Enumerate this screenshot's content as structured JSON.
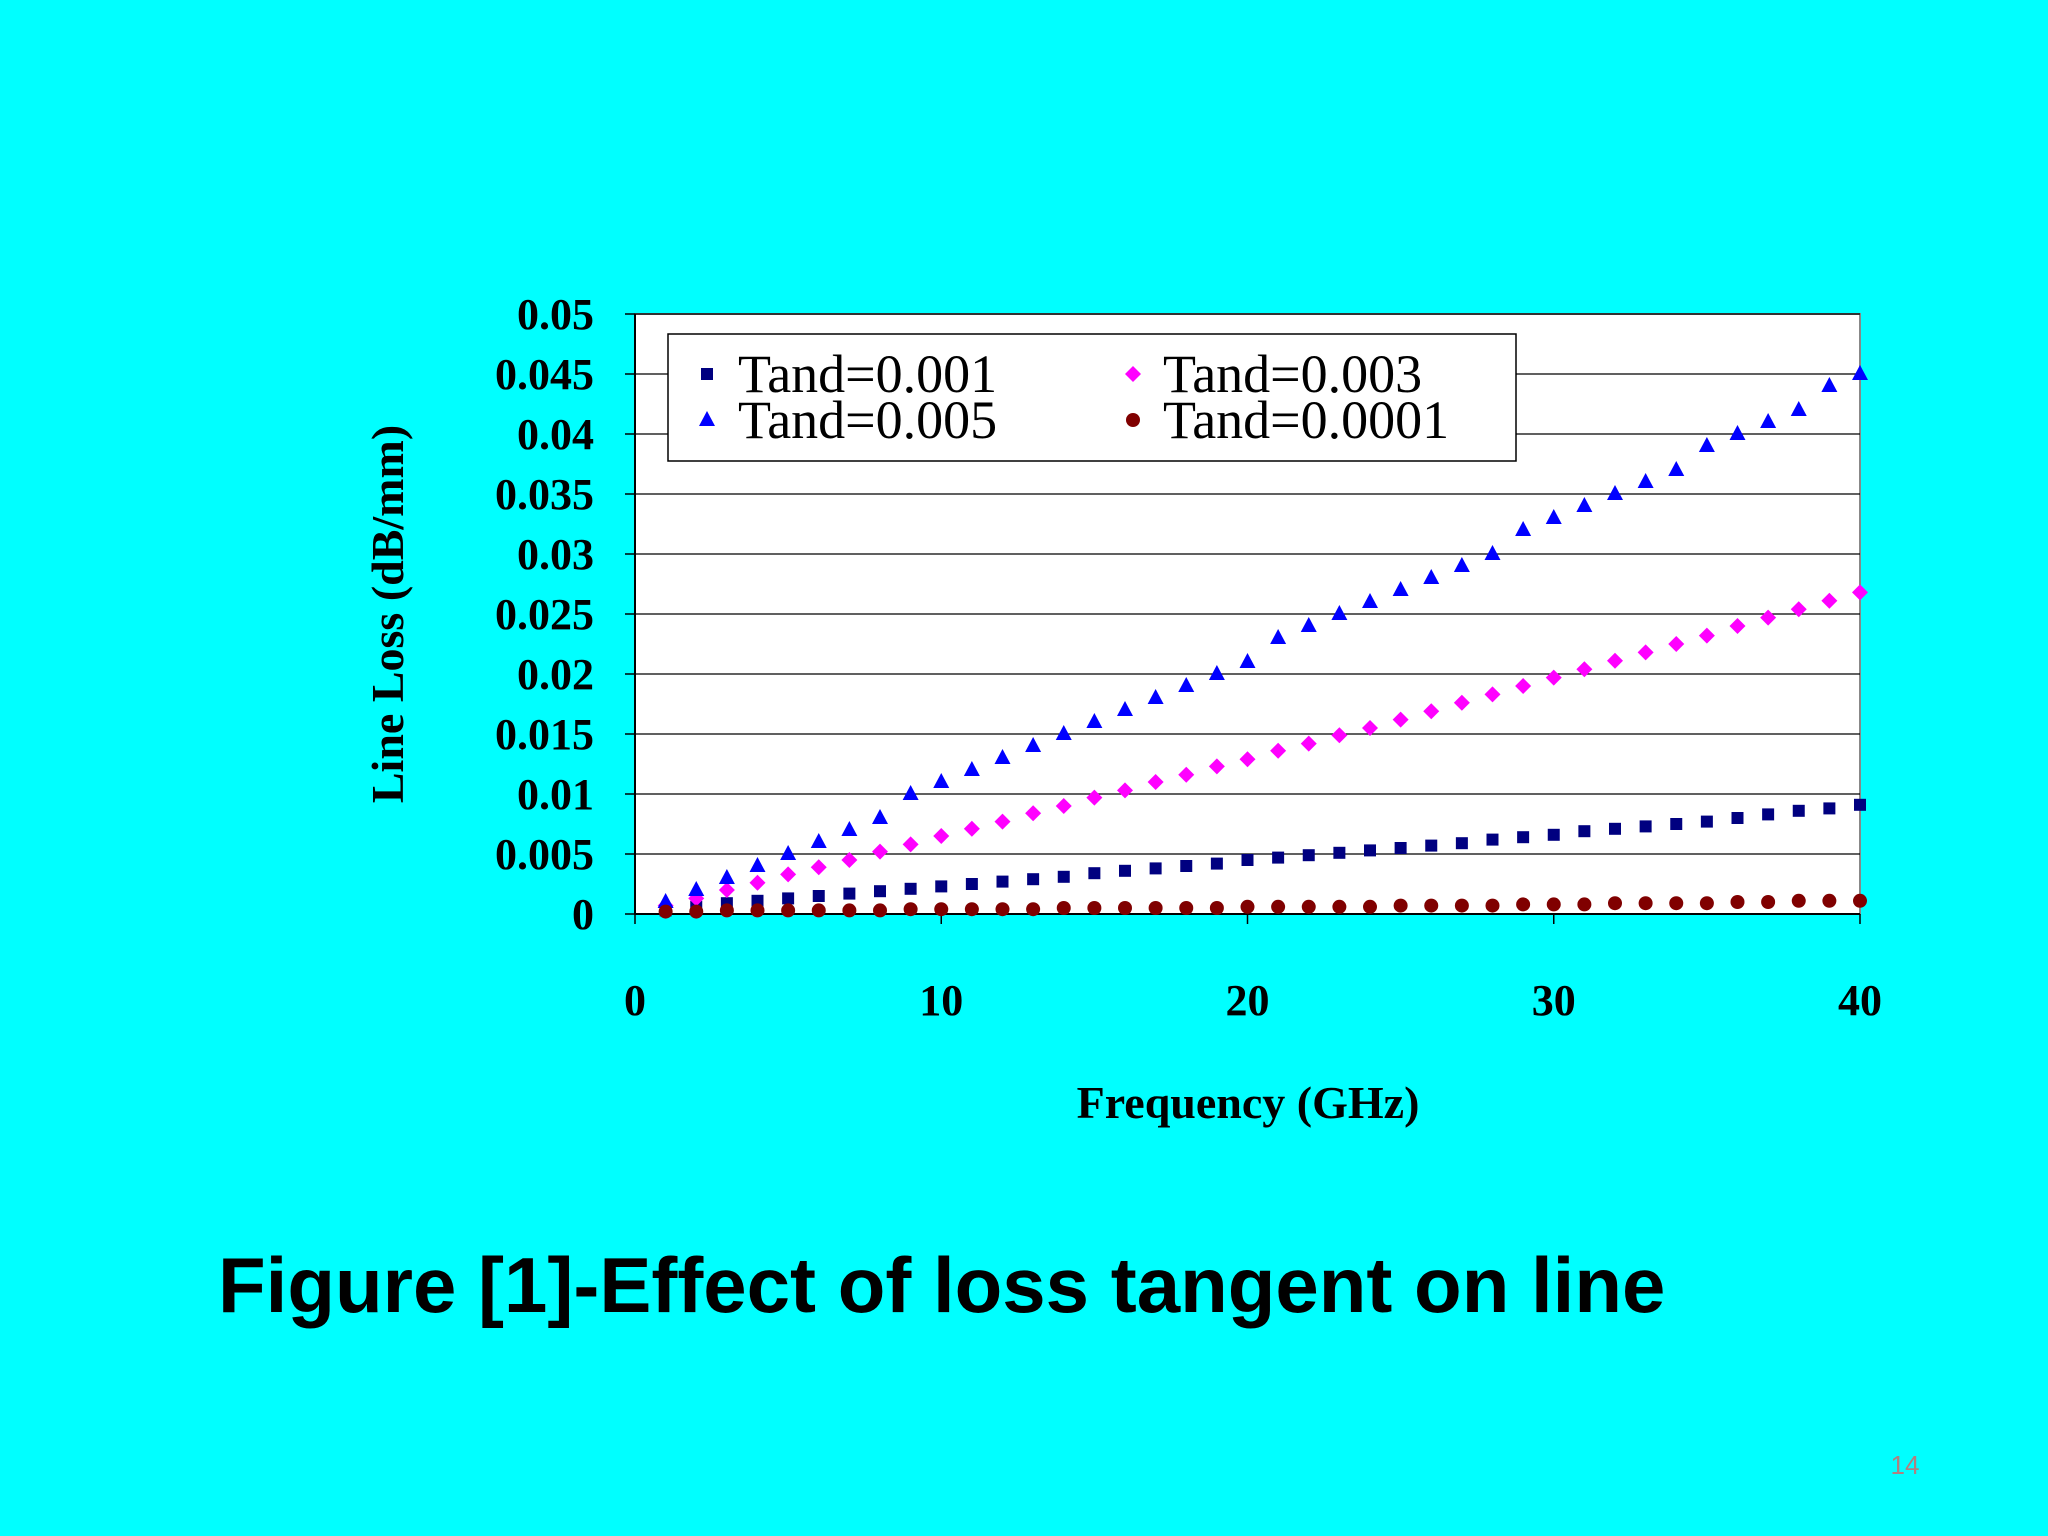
{
  "slide": {
    "background": "#00ffff",
    "caption": "Figure [1]-Effect of loss tangent on line",
    "page_number": "14"
  },
  "chart_data": {
    "type": "scatter",
    "title": "",
    "xlabel": "Frequency (GHz)",
    "ylabel": "Line Loss (dB/mm)",
    "xlim": [
      0,
      40
    ],
    "ylim": [
      0,
      0.05
    ],
    "x_ticks": [
      "0",
      "10",
      "20",
      "30",
      "40"
    ],
    "y_ticks": [
      "0",
      "0.005",
      "0.01",
      "0.015",
      "0.02",
      "0.025",
      "0.03",
      "0.035",
      "0.04",
      "0.045",
      "0.05"
    ],
    "grid": "horizontal",
    "legend_position": "top-left (inside plot)",
    "x": [
      1,
      2,
      3,
      4,
      5,
      6,
      7,
      8,
      9,
      10,
      11,
      12,
      13,
      14,
      15,
      16,
      17,
      18,
      19,
      20,
      21,
      22,
      23,
      24,
      25,
      26,
      27,
      28,
      29,
      30,
      31,
      32,
      33,
      34,
      35,
      36,
      37,
      38,
      39,
      40
    ],
    "series": [
      {
        "name": "Tand=0.001",
        "marker": "square",
        "color": "#000080",
        "values": [
          0.0003,
          0.0006,
          0.0009,
          0.0011,
          0.0013,
          0.0015,
          0.0017,
          0.0019,
          0.0021,
          0.0023,
          0.0025,
          0.0027,
          0.0029,
          0.0031,
          0.0034,
          0.0036,
          0.0038,
          0.004,
          0.0042,
          0.0045,
          0.0047,
          0.0049,
          0.0051,
          0.0053,
          0.0055,
          0.0057,
          0.0059,
          0.0062,
          0.0064,
          0.0066,
          0.0069,
          0.0071,
          0.0073,
          0.0075,
          0.0077,
          0.008,
          0.0083,
          0.0086,
          0.0088,
          0.0091
        ]
      },
      {
        "name": "Tand=0.003",
        "marker": "diamond",
        "color": "#ff00ff",
        "values": [
          0.0007,
          0.0013,
          0.002,
          0.0026,
          0.0033,
          0.0039,
          0.0045,
          0.0052,
          0.0058,
          0.0065,
          0.0071,
          0.0077,
          0.0084,
          0.009,
          0.0097,
          0.0103,
          0.011,
          0.0116,
          0.0123,
          0.0129,
          0.0136,
          0.0142,
          0.0149,
          0.0155,
          0.0162,
          0.0169,
          0.0176,
          0.0183,
          0.019,
          0.0197,
          0.0204,
          0.0211,
          0.0218,
          0.0225,
          0.0232,
          0.024,
          0.0247,
          0.0254,
          0.0261,
          0.0268
        ]
      },
      {
        "name": "Tand=0.005",
        "marker": "triangle",
        "color": "#0000ff",
        "values": [
          0.001,
          0.002,
          0.003,
          0.004,
          0.005,
          0.006,
          0.007,
          0.008,
          0.01,
          0.011,
          0.012,
          0.013,
          0.014,
          0.015,
          0.016,
          0.017,
          0.018,
          0.019,
          0.02,
          0.021,
          0.023,
          0.024,
          0.025,
          0.026,
          0.027,
          0.028,
          0.029,
          0.03,
          0.032,
          0.033,
          0.034,
          0.035,
          0.036,
          0.037,
          0.039,
          0.04,
          0.041,
          0.042,
          0.044,
          0.045
        ]
      },
      {
        "name": "Tand=0.0001",
        "marker": "circle",
        "color": "#800000",
        "values": [
          0.0002,
          0.0002,
          0.0003,
          0.0003,
          0.0003,
          0.0003,
          0.0003,
          0.0003,
          0.0004,
          0.0004,
          0.0004,
          0.0004,
          0.0004,
          0.0005,
          0.0005,
          0.0005,
          0.0005,
          0.0005,
          0.0005,
          0.0006,
          0.0006,
          0.0006,
          0.0006,
          0.0006,
          0.0007,
          0.0007,
          0.0007,
          0.0007,
          0.0008,
          0.0008,
          0.0008,
          0.0009,
          0.0009,
          0.0009,
          0.0009,
          0.001,
          0.001,
          0.0011,
          0.0011,
          0.0011
        ]
      }
    ]
  }
}
